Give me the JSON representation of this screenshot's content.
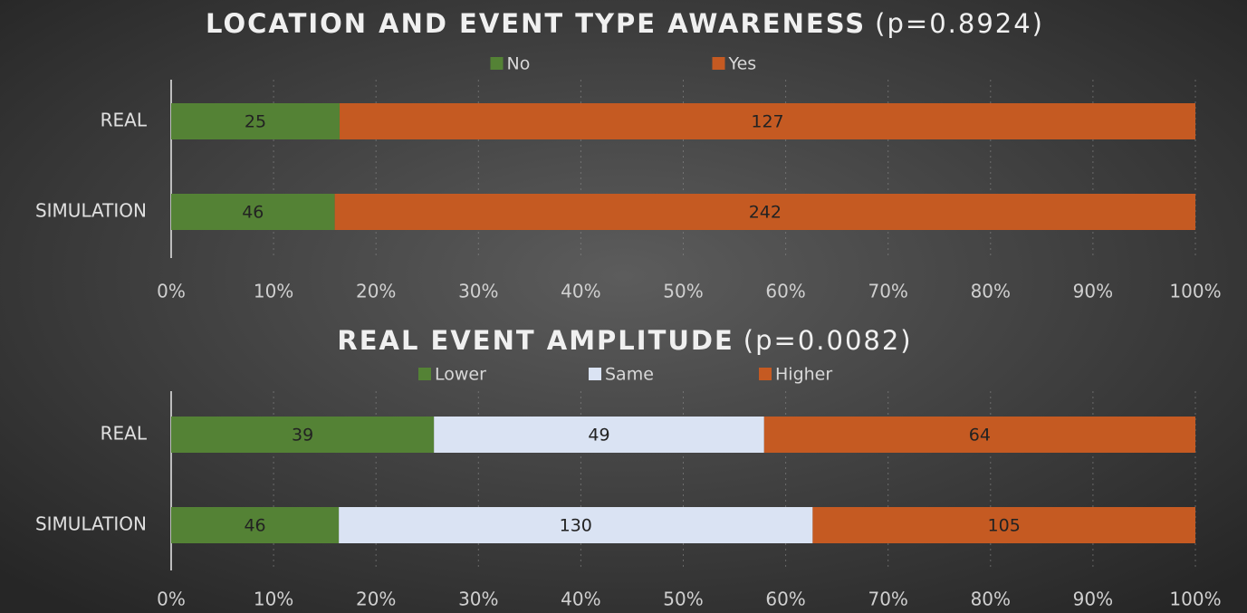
{
  "chart_data": [
    {
      "type": "bar",
      "orientation": "horizontal",
      "stacking": "percent",
      "title": "LOCATION AND EVENT TYPE AWARENESS",
      "subtitle": "(p=0.8924)",
      "categories": [
        "REAL",
        "SIMULATION"
      ],
      "series": [
        {
          "name": "No",
          "color": "#548235",
          "values": [
            25,
            46
          ]
        },
        {
          "name": "Yes",
          "color": "#c55a22",
          "values": [
            127,
            242
          ]
        }
      ],
      "xlim": [
        0,
        100
      ],
      "xticks": [
        {
          "value": 0,
          "label": "0%"
        },
        {
          "value": 10,
          "label": "10%"
        },
        {
          "value": 20,
          "label": "20%"
        },
        {
          "value": 30,
          "label": "30%"
        },
        {
          "value": 40,
          "label": "40%"
        },
        {
          "value": 50,
          "label": "50%"
        },
        {
          "value": 60,
          "label": "60%"
        },
        {
          "value": 70,
          "label": "70%"
        },
        {
          "value": 80,
          "label": "80%"
        },
        {
          "value": 90,
          "label": "90%"
        },
        {
          "value": 100,
          "label": "100%"
        }
      ],
      "grid": true,
      "legend": "top"
    },
    {
      "type": "bar",
      "orientation": "horizontal",
      "stacking": "percent",
      "title": "REAL EVENT AMPLITUDE",
      "subtitle": "(p=0.0082)",
      "categories": [
        "REAL",
        "SIMULATION"
      ],
      "series": [
        {
          "name": "Lower",
          "color": "#548235",
          "values": [
            39,
            46
          ]
        },
        {
          "name": "Same",
          "color": "#dae3f3",
          "values": [
            49,
            130
          ]
        },
        {
          "name": "Higher",
          "color": "#c55a22",
          "values": [
            64,
            105
          ]
        }
      ],
      "xlim": [
        0,
        100
      ],
      "xticks": [
        {
          "value": 0,
          "label": "0%"
        },
        {
          "value": 10,
          "label": "10%"
        },
        {
          "value": 20,
          "label": "20%"
        },
        {
          "value": 30,
          "label": "30%"
        },
        {
          "value": 40,
          "label": "40%"
        },
        {
          "value": 50,
          "label": "50%"
        },
        {
          "value": 60,
          "label": "60%"
        },
        {
          "value": 70,
          "label": "70%"
        },
        {
          "value": 80,
          "label": "80%"
        },
        {
          "value": 90,
          "label": "90%"
        },
        {
          "value": 100,
          "label": "100%"
        }
      ],
      "grid": true,
      "legend": "top"
    }
  ]
}
